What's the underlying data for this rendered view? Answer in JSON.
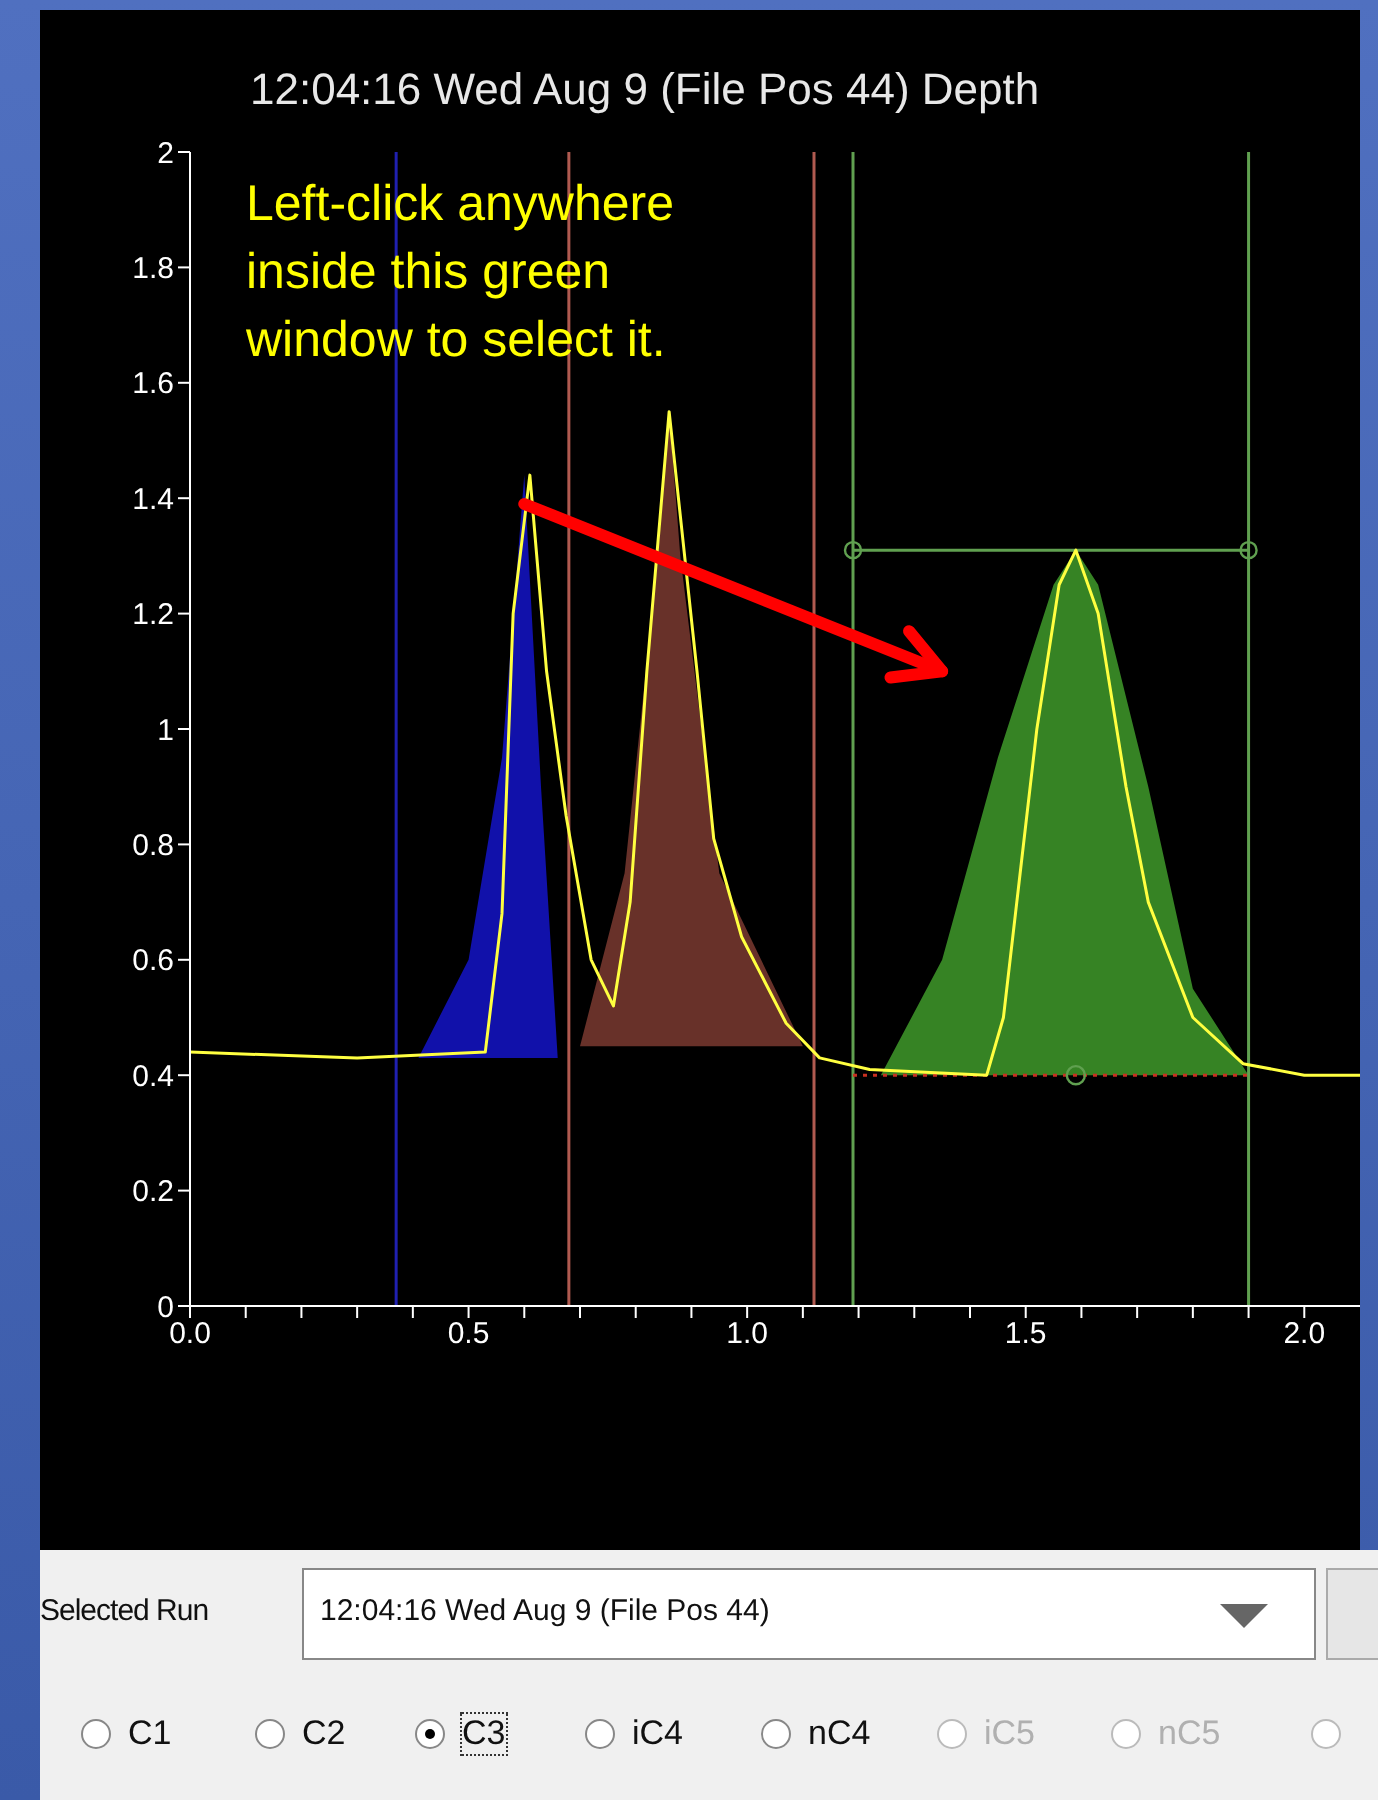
{
  "chart_data": {
    "type": "line",
    "title": "12:04:16 Wed Aug 9 (File Pos 44) Depth",
    "series": [
      {
        "type": "area",
        "color": "#1414c8",
        "x": [
          0.41,
          0.5,
          0.56,
          0.6,
          0.63,
          0.66
        ],
        "values": [
          0.43,
          0.6,
          0.95,
          1.44,
          0.9,
          0.43
        ]
      },
      {
        "type": "area",
        "color": "#7a3a30",
        "x": [
          0.7,
          0.78,
          0.84,
          0.86,
          0.88,
          0.95,
          1.1
        ],
        "values": [
          0.45,
          0.75,
          1.3,
          1.55,
          1.3,
          0.75,
          0.45
        ]
      },
      {
        "type": "area",
        "color": "#3f9a2a",
        "x": [
          1.24,
          1.35,
          1.45,
          1.55,
          1.59,
          1.63,
          1.72,
          1.8,
          1.9
        ],
        "values": [
          0.4,
          0.6,
          0.95,
          1.25,
          1.31,
          1.25,
          0.9,
          0.55,
          0.4
        ]
      },
      {
        "type": "line",
        "color": "#c83020",
        "line_style": "dotted",
        "marker": "none",
        "x": [
          1.19,
          1.9
        ],
        "values": [
          0.4,
          0.4
        ]
      },
      {
        "type": "line",
        "color": "#60a050",
        "marker": "circle",
        "x": [
          1.19,
          1.9
        ],
        "values": [
          1.31,
          1.31
        ]
      },
      {
        "type": "scatter",
        "color": "#60a050",
        "marker": "circle",
        "x": [
          1.59
        ],
        "values": [
          0.4
        ]
      },
      {
        "color": "#ffff40",
        "marker": "none",
        "x": [
          0,
          0.3,
          0.53,
          0.56,
          0.58,
          0.61,
          0.64,
          0.675,
          0.72,
          0.76,
          0.79,
          0.82,
          0.86,
          0.91,
          0.94,
          0.99,
          1.07,
          1.13,
          1.22,
          1.43,
          1.46,
          1.49,
          1.52,
          1.56,
          1.59,
          1.63,
          1.68,
          1.72,
          1.8,
          1.89,
          2.0,
          2.1
        ],
        "values": [
          0.44,
          0.43,
          0.44,
          0.68,
          1.2,
          1.44,
          1.1,
          0.85,
          0.6,
          0.52,
          0.7,
          1.1,
          1.55,
          1.1,
          0.81,
          0.64,
          0.49,
          0.43,
          0.41,
          0.4,
          0.5,
          0.75,
          1.0,
          1.25,
          1.31,
          1.2,
          0.9,
          0.7,
          0.5,
          0.42,
          0.4,
          0.4
        ]
      }
    ],
    "xlim": [
      0,
      2.1
    ],
    "xticks": [
      {
        "value": 0,
        "label": "0.0"
      },
      {
        "value": 0.1,
        "label": null
      },
      {
        "value": 0.2,
        "label": null
      },
      {
        "value": 0.3,
        "label": null
      },
      {
        "value": 0.4,
        "label": null
      },
      {
        "value": 0.5,
        "label": "0.5"
      },
      {
        "value": 0.6,
        "label": null
      },
      {
        "value": 0.7,
        "label": null
      },
      {
        "value": 0.8,
        "label": null
      },
      {
        "value": 0.9,
        "label": null
      },
      {
        "value": 1,
        "label": "1.0"
      },
      {
        "value": 1.1,
        "label": null
      },
      {
        "value": 1.2,
        "label": null
      },
      {
        "value": 1.3,
        "label": null
      },
      {
        "value": 1.4,
        "label": null
      },
      {
        "value": 1.5,
        "label": "1.5"
      },
      {
        "value": 1.6,
        "label": null
      },
      {
        "value": 1.7,
        "label": null
      },
      {
        "value": 1.8,
        "label": null
      },
      {
        "value": 1.9,
        "label": null
      },
      {
        "value": 2,
        "label": "2.0"
      }
    ],
    "ylim": [
      0,
      2
    ],
    "yticks": [
      0,
      0.2,
      0.4,
      0.6,
      0.8,
      1,
      1.2,
      1.4,
      1.6,
      1.8,
      2
    ],
    "ref_lines": [
      {
        "axis": "x",
        "value": 0.37,
        "color": "#2020b0"
      },
      {
        "axis": "x",
        "value": 0.68,
        "color": "#b05a50"
      },
      {
        "axis": "x",
        "value": 1.12,
        "color": "#b05a50"
      },
      {
        "axis": "x",
        "value": 1.19,
        "color": "#60a050"
      },
      {
        "axis": "x",
        "value": 1.9,
        "color": "#60a050"
      }
    ],
    "annotations": [
      "Left-click anywhere inside this green window to select it.",
      "Selected Run",
      "12:04:16 Wed Aug 9 (File Pos 44)",
      "C1",
      "C2",
      "C3",
      "iC4",
      "nC4",
      "iC5",
      "nC5"
    ]
  }
}
